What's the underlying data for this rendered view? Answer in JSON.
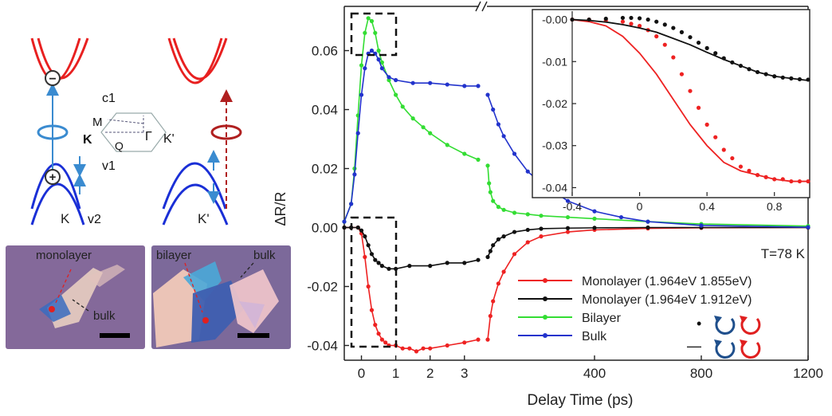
{
  "band_diagram": {
    "valley_left": "K",
    "valley_right": "K'",
    "band_c1": "c1",
    "band_v1": "v1",
    "band_v2": "v2",
    "bz_point_M": "M",
    "bz_point_K": "K",
    "bz_point_Q": "Q",
    "bz_point_Gamma": "Γ",
    "bz_point_Kprime": "K'",
    "electron_symbol": "−",
    "hole_symbol": "+"
  },
  "micrographs": {
    "left_label_1": "monolayer",
    "left_label_2": "bulk",
    "right_label_1": "bilayer",
    "right_label_2": "bulk"
  },
  "chart_data": [
    {
      "type": "line",
      "x_axis_label": "Delay Time (ps)",
      "y_axis_label": "ΔR/R",
      "x_segments": [
        {
          "range": [
            -0.5,
            3.4
          ],
          "ticks": [
            0,
            1,
            2,
            3
          ]
        },
        {
          "range": [
            0,
            1200
          ],
          "ticks": [
            400,
            800,
            1200
          ]
        }
      ],
      "ylim": [
        -0.045,
        0.075
      ],
      "yticks": [
        "0.06",
        "0.04",
        "0.02",
        "0.00",
        "-0.02",
        "-0.04"
      ],
      "ytick_values": [
        0.06,
        0.04,
        0.02,
        0.0,
        -0.02,
        -0.04
      ],
      "annotation": "T=78 K",
      "legend_entries": [
        {
          "label": "Monolayer (1.964eV 1.855eV)",
          "color": "#ee2222"
        },
        {
          "label": "Monolayer (1.964eV 1.912eV)",
          "color": "#111111"
        },
        {
          "label": "Bilayer",
          "color": "#33dd33"
        },
        {
          "label": "Bulk",
          "color": "#2233cc"
        }
      ],
      "legend_marker_labels": {
        "dot": "•",
        "line": "—"
      },
      "series": [
        {
          "name": "Monolayer (1.964eV 1.855eV)",
          "color": "#ee2222",
          "early": {
            "x": [
              -0.5,
              -0.3,
              -0.1,
              0,
              0.1,
              0.2,
              0.3,
              0.4,
              0.5,
              0.6,
              0.7,
              0.8,
              1.0,
              1.2,
              1.4,
              1.6,
              1.8,
              2.0,
              2.5,
              3.0,
              3.4
            ],
            "y": [
              0.0,
              0.0,
              0.0,
              -0.002,
              -0.01,
              -0.02,
              -0.028,
              -0.033,
              -0.036,
              -0.038,
              -0.039,
              -0.04,
              -0.04,
              -0.041,
              -0.041,
              -0.042,
              -0.041,
              -0.041,
              -0.04,
              -0.039,
              -0.038
            ]
          },
          "late": {
            "x": [
              0,
              10,
              20,
              40,
              60,
              100,
              150,
              200,
              300,
              400,
              600,
              800,
              1200
            ],
            "y": [
              -0.038,
              -0.03,
              -0.025,
              -0.019,
              -0.015,
              -0.009,
              -0.005,
              -0.003,
              -0.0015,
              -0.0008,
              -0.0003,
              -0.0001,
              0.0
            ]
          }
        },
        {
          "name": "Monolayer (1.964eV 1.912eV)",
          "color": "#111111",
          "early": {
            "x": [
              -0.5,
              -0.3,
              -0.1,
              0,
              0.1,
              0.2,
              0.3,
              0.4,
              0.5,
              0.6,
              0.8,
              1.0,
              1.4,
              2.0,
              2.5,
              3.0,
              3.4
            ],
            "y": [
              0.0,
              0.0,
              0.0,
              -0.001,
              -0.003,
              -0.006,
              -0.009,
              -0.011,
              -0.012,
              -0.013,
              -0.014,
              -0.014,
              -0.013,
              -0.013,
              -0.012,
              -0.012,
              -0.011
            ]
          },
          "late": {
            "x": [
              0,
              10,
              20,
              40,
              60,
              100,
              150,
              200,
              300,
              400,
              600,
              800,
              1200
            ],
            "y": [
              -0.01,
              -0.008,
              -0.006,
              -0.004,
              -0.003,
              -0.0015,
              -0.0008,
              -0.0004,
              -0.0002,
              -0.0001,
              0.0,
              0.0,
              0.0
            ]
          }
        },
        {
          "name": "Bilayer",
          "color": "#33dd33",
          "early": {
            "x": [
              -0.5,
              -0.3,
              -0.2,
              -0.1,
              0,
              0.1,
              0.2,
              0.3,
              0.4,
              0.5,
              0.6,
              0.8,
              1.0,
              1.2,
              1.5,
              1.8,
              2.0,
              2.5,
              3.0,
              3.4
            ],
            "y": [
              0.002,
              0.008,
              0.02,
              0.038,
              0.055,
              0.066,
              0.071,
              0.07,
              0.066,
              0.06,
              0.056,
              0.05,
              0.045,
              0.041,
              0.037,
              0.034,
              0.032,
              0.028,
              0.025,
              0.023
            ]
          },
          "late": {
            "x": [
              0,
              5,
              10,
              20,
              40,
              60,
              100,
              150,
              200,
              300,
              400,
              600,
              800,
              1200
            ],
            "y": [
              0.021,
              0.015,
              0.012,
              0.009,
              0.007,
              0.006,
              0.005,
              0.0045,
              0.004,
              0.0035,
              0.003,
              0.002,
              0.0012,
              0.0005
            ]
          }
        },
        {
          "name": "Bulk",
          "color": "#2233cc",
          "early": {
            "x": [
              -0.5,
              -0.3,
              -0.2,
              -0.1,
              0,
              0.1,
              0.2,
              0.3,
              0.4,
              0.5,
              0.6,
              0.8,
              1.0,
              1.5,
              2.0,
              2.5,
              3.0,
              3.4
            ],
            "y": [
              0.002,
              0.008,
              0.018,
              0.032,
              0.045,
              0.054,
              0.059,
              0.06,
              0.059,
              0.057,
              0.054,
              0.051,
              0.05,
              0.049,
              0.049,
              0.0485,
              0.048,
              0.048
            ]
          },
          "late": {
            "x": [
              0,
              20,
              40,
              60,
              100,
              150,
              200,
              250,
              300,
              400,
              500,
              600,
              800,
              1200
            ],
            "y": [
              0.045,
              0.04,
              0.035,
              0.031,
              0.025,
              0.019,
              0.015,
              0.012,
              0.009,
              0.0055,
              0.0035,
              0.002,
              0.0007,
              0.0001
            ]
          }
        }
      ]
    },
    {
      "type": "line",
      "role": "inset",
      "xlim": [
        -0.4,
        1.0
      ],
      "xticks": [
        "-0.4",
        "0",
        "0.4",
        "0.8"
      ],
      "xtick_values": [
        -0.4,
        0.0,
        0.4,
        0.8
      ],
      "ylim": [
        -0.042,
        0.002
      ],
      "yticks": [
        "-0.00",
        "-0.01",
        "-0.02",
        "-0.03",
        "-0.04"
      ],
      "ytick_values": [
        0.0,
        -0.01,
        -0.02,
        -0.03,
        -0.04
      ],
      "series": [
        {
          "name": "red-line",
          "color": "#ee2222",
          "style": "line",
          "x": [
            -0.4,
            -0.3,
            -0.2,
            -0.1,
            0,
            0.1,
            0.2,
            0.3,
            0.4,
            0.5,
            0.6,
            0.7,
            0.8,
            0.9,
            1.0
          ],
          "y": [
            0.0,
            -0.0005,
            -0.0015,
            -0.004,
            -0.008,
            -0.013,
            -0.019,
            -0.025,
            -0.03,
            -0.034,
            -0.036,
            -0.037,
            -0.038,
            -0.0385,
            -0.0385
          ]
        },
        {
          "name": "red-dots",
          "color": "#ee2222",
          "style": "dots",
          "x": [
            -0.4,
            -0.3,
            -0.2,
            -0.1,
            -0.05,
            0,
            0.05,
            0.1,
            0.15,
            0.2,
            0.25,
            0.3,
            0.35,
            0.4,
            0.45,
            0.5,
            0.55,
            0.6,
            0.65,
            0.7,
            0.75,
            0.8,
            0.85,
            0.9,
            0.95,
            1.0
          ],
          "y": [
            0.0,
            0.0,
            -0.0002,
            -0.0005,
            -0.001,
            -0.0015,
            -0.0025,
            -0.004,
            -0.006,
            -0.009,
            -0.013,
            -0.017,
            -0.021,
            -0.025,
            -0.028,
            -0.031,
            -0.033,
            -0.035,
            -0.036,
            -0.037,
            -0.0375,
            -0.038,
            -0.038,
            -0.0385,
            -0.0385,
            -0.0385
          ]
        },
        {
          "name": "black-line",
          "color": "#111111",
          "style": "line",
          "x": [
            -0.4,
            -0.3,
            -0.2,
            -0.1,
            0,
            0.1,
            0.2,
            0.3,
            0.4,
            0.5,
            0.6,
            0.7,
            0.8,
            0.9,
            1.0
          ],
          "y": [
            0.0,
            -0.0002,
            -0.0006,
            -0.0012,
            -0.002,
            -0.003,
            -0.0045,
            -0.006,
            -0.0078,
            -0.0095,
            -0.011,
            -0.0125,
            -0.0135,
            -0.014,
            -0.0145
          ]
        },
        {
          "name": "black-dots",
          "color": "#111111",
          "style": "dots",
          "x": [
            -0.4,
            -0.3,
            -0.2,
            -0.1,
            -0.05,
            0,
            0.05,
            0.1,
            0.15,
            0.2,
            0.25,
            0.3,
            0.35,
            0.4,
            0.45,
            0.5,
            0.55,
            0.6,
            0.65,
            0.7,
            0.75,
            0.8,
            0.85,
            0.9,
            0.95,
            1.0
          ],
          "y": [
            0.0,
            0.0,
            0.0002,
            0.0004,
            0.0004,
            0.0003,
            0.0,
            -0.0005,
            -0.0012,
            -0.002,
            -0.003,
            -0.0042,
            -0.0055,
            -0.0068,
            -0.008,
            -0.0092,
            -0.0102,
            -0.011,
            -0.0118,
            -0.0125,
            -0.013,
            -0.0135,
            -0.0138,
            -0.014,
            -0.0142,
            -0.0143
          ]
        }
      ]
    }
  ]
}
